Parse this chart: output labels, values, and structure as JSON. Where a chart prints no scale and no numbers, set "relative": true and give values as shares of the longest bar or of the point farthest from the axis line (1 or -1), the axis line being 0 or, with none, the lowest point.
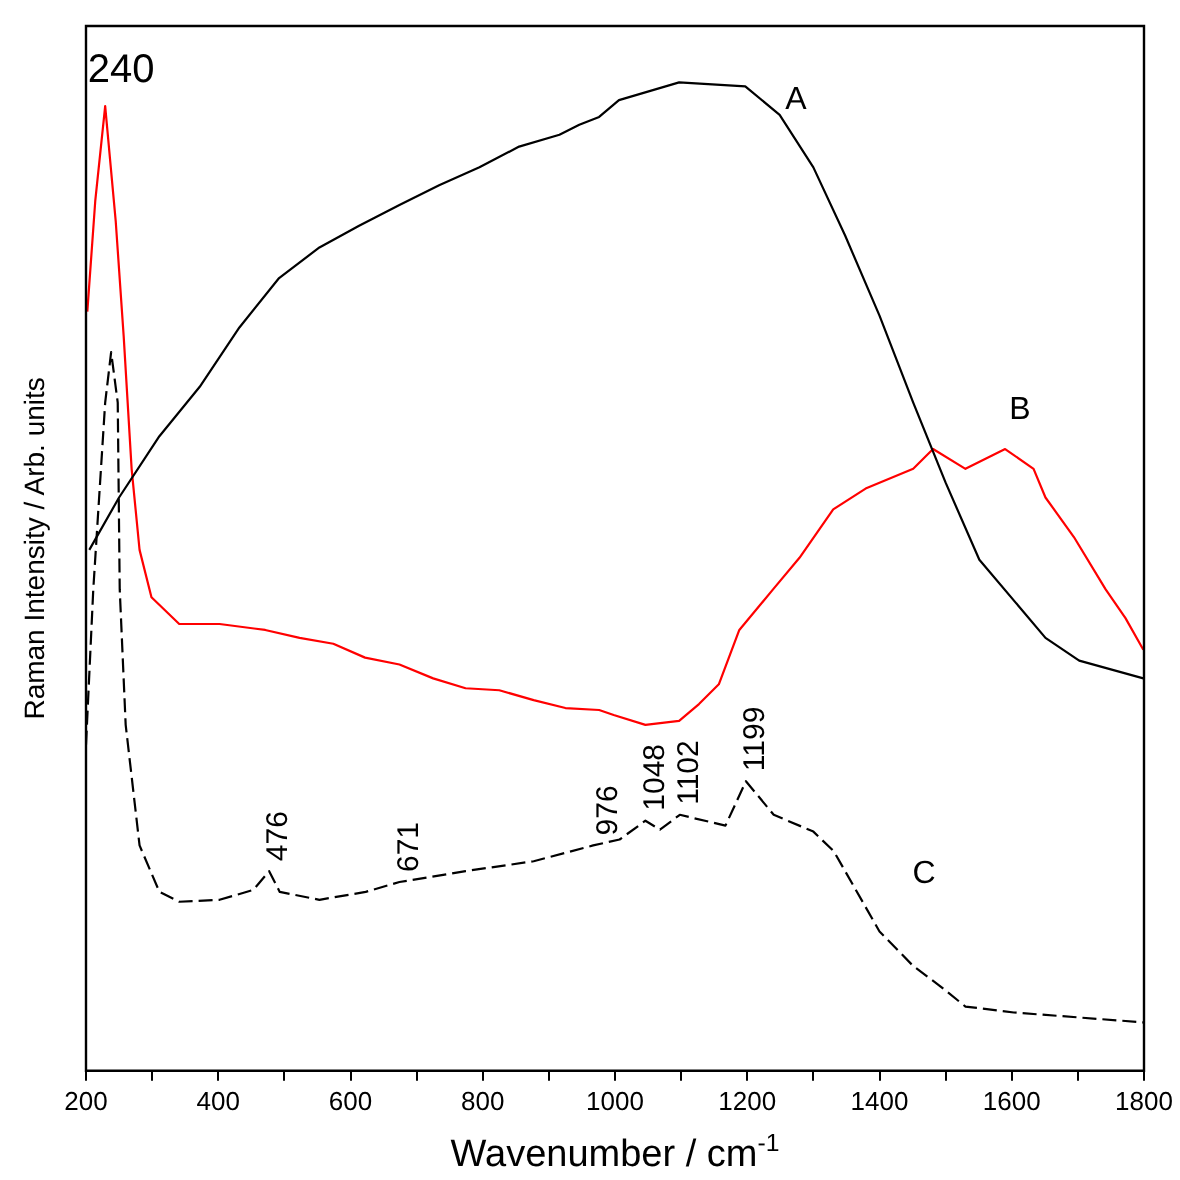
{
  "chart_data": {
    "type": "line",
    "relative": true,
    "xlabel": "Wavenumber / cm$^{-1}$",
    "ylabel": "Raman Intensity / Arb. units",
    "xlim": [
      200,
      1800
    ],
    "xticks": [
      200,
      {
        "value": 300,
        "label": null
      },
      400,
      {
        "value": 500,
        "label": null
      },
      600,
      {
        "value": 700,
        "label": null
      },
      800,
      {
        "value": 900,
        "label": null
      },
      1000,
      {
        "value": 1100,
        "label": null
      },
      1200,
      {
        "value": 1300,
        "label": null
      },
      1400,
      {
        "value": 1500,
        "label": null
      },
      1600,
      {
        "value": 1700,
        "label": null
      },
      1800
    ],
    "grid": false,
    "legend": false,
    "marker": "none",
    "series": [
      {
        "name": "A",
        "color": "#000000",
        "line_style": "solid",
        "x": [
          205,
          250,
          311,
          372,
          432,
          492,
          553,
          613,
          674,
          734,
          795,
          855,
          916,
          946,
          976,
          1006,
          1097,
          1197,
          1249,
          1300,
          1348,
          1400,
          1451,
          1500,
          1551,
          1651,
          1702,
          1799
        ],
        "values": [
          0.527,
          0.58,
          0.642,
          0.692,
          0.752,
          0.802,
          0.833,
          0.855,
          0.876,
          0.896,
          0.914,
          0.935,
          0.947,
          0.957,
          0.965,
          0.982,
          1.0,
          0.996,
          0.967,
          0.914,
          0.845,
          0.764,
          0.676,
          0.595,
          0.517,
          0.438,
          0.415,
          0.397
        ]
      },
      {
        "name": "B",
        "color": "#ff0000",
        "line_style": "solid",
        "x": [
          202,
          214,
          229,
          245,
          257,
          269,
          281,
          299,
          341,
          402,
          471,
          523,
          574,
          622,
          674,
          725,
          774,
          825,
          877,
          925,
          976,
          998,
          1046,
          1097,
          1127,
          1157,
          1188,
          1239,
          1279,
          1330,
          1379,
          1451,
          1481,
          1530,
          1590,
          1633,
          1651,
          1694,
          1742,
          1772,
          1799
        ],
        "values": [
          0.768,
          0.88,
          0.976,
          0.859,
          0.743,
          0.609,
          0.527,
          0.479,
          0.452,
          0.452,
          0.446,
          0.438,
          0.432,
          0.418,
          0.411,
          0.397,
          0.387,
          0.385,
          0.375,
          0.367,
          0.365,
          0.36,
          0.35,
          0.354,
          0.371,
          0.391,
          0.446,
          0.487,
          0.519,
          0.568,
          0.589,
          0.609,
          0.629,
          0.609,
          0.629,
          0.609,
          0.58,
          0.54,
          0.487,
          0.458,
          0.426
        ]
      },
      {
        "name": "C",
        "color": "#000000",
        "line_style": "dashed",
        "x": [
          200,
          211,
          229,
          238,
          248,
          251,
          260,
          281,
          311,
          341,
          402,
          453,
          477,
          493,
          553,
          623,
          674,
          774,
          877,
          967,
          1007,
          1046,
          1068,
          1098,
          1167,
          1198,
          1240,
          1300,
          1331,
          1400,
          1451,
          1491,
          1530,
          1603,
          1799
        ],
        "values": [
          0.33,
          0.487,
          0.676,
          0.727,
          0.676,
          0.487,
          0.35,
          0.228,
          0.181,
          0.171,
          0.173,
          0.183,
          0.202,
          0.181,
          0.173,
          0.181,
          0.191,
          0.202,
          0.212,
          0.228,
          0.234,
          0.253,
          0.244,
          0.259,
          0.248,
          0.293,
          0.259,
          0.242,
          0.222,
          0.141,
          0.106,
          0.086,
          0.065,
          0.059,
          0.049
        ]
      }
    ],
    "annotations": [
      {
        "text": "240",
        "x": 229,
        "y": 0.976
      },
      {
        "text": "476",
        "x": 477,
        "y": 0.202
      },
      {
        "text": "671",
        "x": 674,
        "y": 0.191
      },
      {
        "text": "976",
        "x": 976,
        "y": 0.228
      },
      {
        "text": "1048",
        "x": 1046,
        "y": 0.253
      },
      {
        "text": "1102",
        "x": 1098,
        "y": 0.259
      },
      {
        "text": "1199",
        "x": 1198,
        "y": 0.293
      }
    ]
  }
}
